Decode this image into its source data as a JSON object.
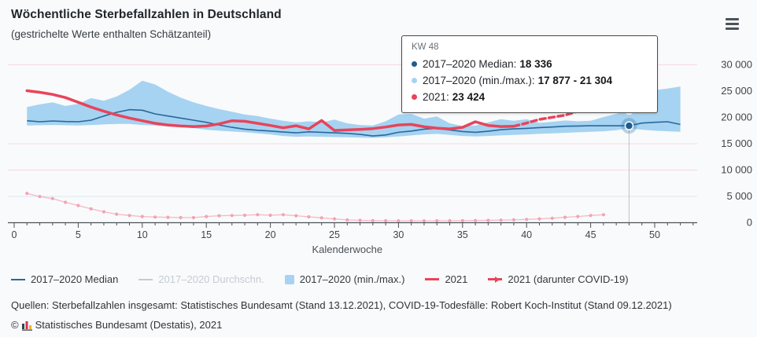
{
  "header": {
    "title": "Wöchentliche Sterbefallzahlen in Deutschland",
    "subtitle": "(gestrichelte Werte enthalten Schätzanteil)"
  },
  "menu": {
    "icon": "hamburger-menu-icon"
  },
  "tooltip": {
    "header": "KW 48",
    "rows": [
      {
        "color": "#1d5c8f",
        "label": "2017–2020 Median:",
        "value": "18 336"
      },
      {
        "color": "#a6d3f1",
        "label": "2017–2020 (min./max.):",
        "value": "17 877 - 21 304"
      },
      {
        "color": "#e8445a",
        "label": "2021:",
        "value": "23 424"
      }
    ]
  },
  "legend": [
    {
      "swatch": "line",
      "color": "#29689b",
      "label": "2017–2020 Median",
      "disabled": false
    },
    {
      "swatch": "line",
      "color": "#c4cbd4",
      "label": "2017–2020 Durchschn.",
      "disabled": true
    },
    {
      "swatch": "square",
      "color": "#a6d3f1",
      "label": "2017–2020 (min./max.)",
      "disabled": false
    },
    {
      "swatch": "line-thick",
      "color": "#e8445a",
      "label": "2021",
      "disabled": false
    },
    {
      "swatch": "line-arrow",
      "color": "#e8445a",
      "label": "2021 (darunter COVID-19)",
      "disabled": false
    }
  ],
  "sources": "Quellen: Sterbefallzahlen insgesamt: Statistisches Bundesamt (Stand 13.12.2021), COVID-19-Todesfälle: Robert Koch-Institut (Stand 09.12.2021)",
  "footer": {
    "copyright": "©",
    "text": "Statistisches Bundesamt (Destatis), 2021",
    "logo_colors": [
      "#3a4149",
      "#d5344a",
      "#f0b429"
    ]
  },
  "chart_data": {
    "type": "line",
    "title": "Wöchentliche Sterbefallzahlen in Deutschland",
    "xlabel": "Kalenderwoche",
    "ylabel": "",
    "x_range": [
      0,
      53
    ],
    "ylim": [
      0,
      30000
    ],
    "x_ticks_labeled": [
      0,
      5,
      10,
      15,
      20,
      25,
      30,
      35,
      40,
      45,
      50
    ],
    "y_ticks": [
      {
        "value": 30000,
        "label": "30 000"
      },
      {
        "value": 25000,
        "label": "25 000"
      },
      {
        "value": 20000,
        "label": "20 000"
      },
      {
        "value": 15000,
        "label": "15 000"
      },
      {
        "value": 10000,
        "label": "10 000"
      },
      {
        "value": 5000,
        "label": "5 000"
      },
      {
        "value": 0,
        "label": "0"
      }
    ],
    "gridlines": [
      {
        "value": 30000,
        "color": "#f7d9de"
      },
      {
        "value": 15000,
        "color": "#f7d9de"
      },
      {
        "value": 10000,
        "color": "#f7d9de"
      },
      {
        "value": 5000,
        "color": "#dde6f1"
      }
    ],
    "highlight_week": 48,
    "series": [
      {
        "name": "2017–2020 (min./max.)",
        "type": "band",
        "color": "#a6d3f1",
        "week_start": 1,
        "max": [
          21900,
          22400,
          22800,
          22100,
          22500,
          23600,
          23100,
          23900,
          25200,
          26900,
          26200,
          24800,
          23700,
          22800,
          22100,
          21500,
          21000,
          20500,
          20200,
          19700,
          19300,
          19000,
          19200,
          19000,
          19500,
          18800,
          18500,
          18400,
          19200,
          20500,
          20600,
          19700,
          20100,
          18800,
          18300,
          18400,
          19000,
          19600,
          19300,
          19600,
          18900,
          19100,
          19350,
          19200,
          19300,
          20000,
          20600,
          21304,
          24000,
          25100,
          25400,
          25800
        ],
        "min": [
          18400,
          18450,
          18500,
          18450,
          18400,
          18500,
          18600,
          18700,
          18700,
          18500,
          18400,
          18200,
          18100,
          17900,
          17600,
          17400,
          17250,
          17100,
          16900,
          16700,
          16400,
          16250,
          16300,
          16250,
          16200,
          16150,
          16100,
          16050,
          16150,
          16300,
          16500,
          16700,
          16800,
          16600,
          16400,
          16300,
          16400,
          16500,
          16600,
          16700,
          16800,
          16900,
          17000,
          17100,
          17200,
          17300,
          17500,
          17877,
          17600,
          17400,
          17300,
          17200
        ]
      },
      {
        "name": "2021 (darunter COVID-19)",
        "type": "line-markers",
        "color": "#f5b8c4",
        "marker_color": "#f1a4b3",
        "week_start": 1,
        "values": [
          5500,
          4900,
          4500,
          3800,
          3200,
          2550,
          2000,
          1550,
          1300,
          1100,
          1000,
          950,
          900,
          900,
          1100,
          1250,
          1300,
          1350,
          1450,
          1350,
          1450,
          1250,
          1050,
          850,
          650,
          450,
          380,
          330,
          300,
          290,
          280,
          280,
          290,
          300,
          320,
          350,
          380,
          420,
          470,
          550,
          650,
          780,
          950,
          1100,
          1300,
          1450
        ]
      },
      {
        "name": "2017–2020 Median",
        "type": "line",
        "color": "#29689b",
        "width": 1.6,
        "week_start": 1,
        "values": [
          19300,
          19100,
          19250,
          19150,
          19100,
          19400,
          20200,
          20900,
          21400,
          21300,
          20600,
          20200,
          19800,
          19400,
          19000,
          18500,
          18050,
          17700,
          17500,
          17350,
          17150,
          17000,
          17200,
          17100,
          17000,
          16900,
          16700,
          16400,
          16600,
          17100,
          17350,
          17700,
          17850,
          17550,
          17250,
          17100,
          17300,
          17600,
          17750,
          17850,
          18000,
          18100,
          18250,
          18300,
          18350,
          18350,
          18340,
          18336,
          18850,
          19000,
          19100,
          18600
        ]
      },
      {
        "name": "2021",
        "type": "line",
        "color": "#e8445a",
        "width": 3.5,
        "week_start": 1,
        "dashed_from_week": 39,
        "values": [
          25000,
          24700,
          24300,
          23700,
          22800,
          21900,
          21100,
          20400,
          19800,
          19300,
          18800,
          18500,
          18300,
          18200,
          18300,
          18700,
          19300,
          19200,
          18800,
          18400,
          17950,
          18350,
          17750,
          19350,
          17450,
          17550,
          17650,
          17800,
          18100,
          18500,
          18600,
          18150,
          17900,
          17750,
          18050,
          19100,
          18400,
          18200,
          18250,
          18850,
          19550,
          19950,
          20350,
          21100,
          21900,
          22600,
          23050,
          23424
        ]
      }
    ],
    "markers": [
      {
        "week": 48,
        "value": 23424,
        "color": "#e8445a",
        "halo": "rgba(232,68,90,0.28)"
      },
      {
        "week": 48,
        "value": 21304,
        "color": "#a6d3f1",
        "halo": "rgba(166,211,241,0.45)"
      },
      {
        "week": 48,
        "value": 18336,
        "color": "#1d5c8f",
        "halo": "rgba(41,104,155,0.28)"
      }
    ]
  }
}
